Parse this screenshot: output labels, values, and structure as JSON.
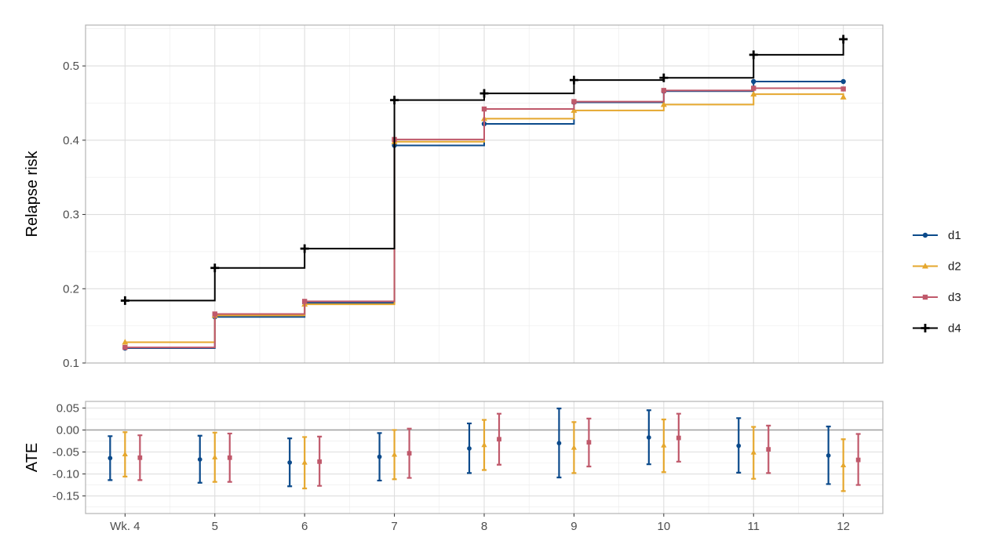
{
  "chart_data": [
    {
      "type": "line",
      "step": true,
      "ylabel": "Relapse risk",
      "ylim": [
        0.1,
        0.555
      ],
      "yticks": [
        0.1,
        0.2,
        0.3,
        0.4,
        0.5
      ],
      "ytick_labels": [
        "0.1",
        "0.2",
        "0.3",
        "0.4",
        "0.5"
      ],
      "x": [
        4,
        5,
        6,
        7,
        8,
        9,
        10,
        11,
        12
      ],
      "grid": true,
      "legend_position": "right",
      "series": [
        {
          "name": "d1",
          "color": "#0b4a8b",
          "marker": "circle",
          "values": [
            0.12,
            0.162,
            0.181,
            0.393,
            0.422,
            0.451,
            0.466,
            0.479,
            0.479
          ]
        },
        {
          "name": "d2",
          "color": "#e5a72e",
          "marker": "triangle",
          "values": [
            0.128,
            0.164,
            0.179,
            0.398,
            0.429,
            0.44,
            0.448,
            0.462,
            0.458
          ]
        },
        {
          "name": "d3",
          "color": "#c0596b",
          "marker": "square",
          "values": [
            0.121,
            0.166,
            0.183,
            0.401,
            0.442,
            0.452,
            0.467,
            0.47,
            0.469
          ]
        },
        {
          "name": "d4",
          "color": "#000000",
          "marker": "plus",
          "values": [
            0.184,
            0.228,
            0.254,
            0.454,
            0.463,
            0.481,
            0.484,
            0.515,
            0.536
          ]
        }
      ]
    },
    {
      "type": "errorbar",
      "ylabel": "ATE",
      "ylim": [
        -0.19,
        0.065
      ],
      "yticks": [
        0.05,
        0.0,
        -0.05,
        -0.1,
        -0.15
      ],
      "ytick_labels": [
        "0.05",
        "0.00",
        "-0.05",
        "-0.10",
        "-0.15"
      ],
      "reference_line": 0,
      "x": [
        4,
        5,
        6,
        7,
        8,
        9,
        10,
        11,
        12
      ],
      "xtick_labels": [
        "Wk. 4",
        "5",
        "6",
        "7",
        "8",
        "9",
        "10",
        "11",
        "12"
      ],
      "grid": true,
      "series": [
        {
          "name": "d1",
          "estimate": [
            -0.064,
            -0.067,
            -0.074,
            -0.061,
            -0.042,
            -0.03,
            -0.017,
            -0.036,
            -0.058
          ],
          "lower": [
            -0.114,
            -0.12,
            -0.128,
            -0.115,
            -0.098,
            -0.108,
            -0.078,
            -0.097,
            -0.123
          ],
          "upper": [
            -0.014,
            -0.013,
            -0.019,
            -0.007,
            0.015,
            0.049,
            0.045,
            0.027,
            0.008
          ]
        },
        {
          "name": "d2",
          "estimate": [
            -0.055,
            -0.062,
            -0.074,
            -0.056,
            -0.034,
            -0.04,
            -0.035,
            -0.051,
            -0.08
          ],
          "lower": [
            -0.106,
            -0.118,
            -0.133,
            -0.112,
            -0.091,
            -0.098,
            -0.096,
            -0.111,
            -0.139
          ],
          "upper": [
            -0.005,
            -0.006,
            -0.016,
            0.0,
            0.023,
            0.018,
            0.024,
            0.007,
            -0.021
          ]
        },
        {
          "name": "d3",
          "estimate": [
            -0.063,
            -0.063,
            -0.072,
            -0.053,
            -0.021,
            -0.028,
            -0.018,
            -0.044,
            -0.068
          ],
          "lower": [
            -0.114,
            -0.118,
            -0.127,
            -0.109,
            -0.079,
            -0.083,
            -0.072,
            -0.098,
            -0.125
          ],
          "upper": [
            -0.012,
            -0.008,
            -0.015,
            0.003,
            0.037,
            0.026,
            0.037,
            0.01,
            -0.009
          ]
        }
      ]
    }
  ]
}
